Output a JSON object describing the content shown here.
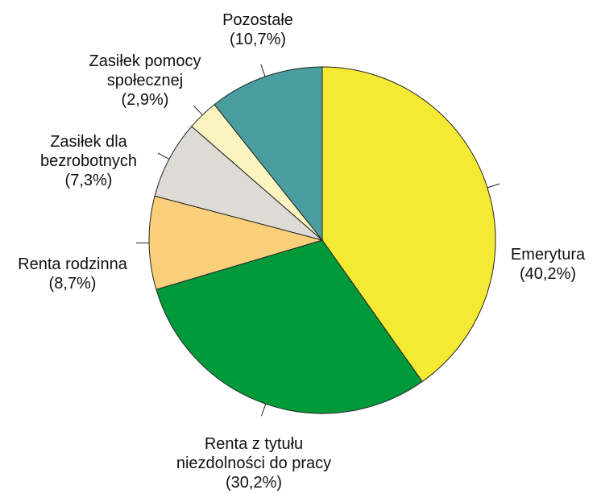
{
  "chart_data": {
    "type": "pie",
    "categories": [
      "Emerytura",
      "Renta z tytułu niezdolności do pracy",
      "Renta rodzinna",
      "Zasiłek dla bezrobotnych",
      "Zasiłek pomocy społecznej",
      "Pozostałe"
    ],
    "values": [
      40.2,
      30.2,
      8.7,
      7.3,
      2.9,
      10.7
    ],
    "value_labels": [
      "(40,2%)",
      "(30,2%)",
      "(8,7%)",
      "(7,3%)",
      "(2,9%)",
      "(10,7%)"
    ],
    "colors": [
      "#f4ea33",
      "#009a3a",
      "#f9cf7a",
      "#dedbd6",
      "#fcf4c0",
      "#4a9ea0"
    ]
  }
}
